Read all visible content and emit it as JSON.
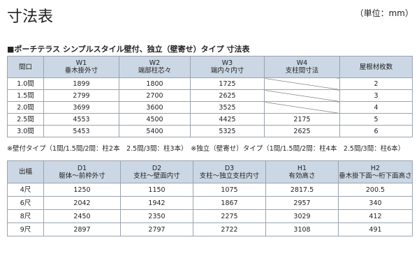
{
  "header": {
    "title": "寸法表",
    "unit": "（単位：mm）"
  },
  "section_title": "■ポーチテラス シンプルスタイル壁付、独立（壁寄せ）タイプ 寸法表",
  "table1": {
    "headers": [
      [
        "間口"
      ],
      [
        "W1",
        "垂木掛外寸"
      ],
      [
        "W2",
        "端部柱芯々"
      ],
      [
        "W3",
        "端内々内寸"
      ],
      [
        "W4",
        "支柱間寸法"
      ],
      [
        "屋根材枚数"
      ]
    ],
    "rows": [
      [
        "1.0間",
        1899,
        1800,
        1725,
        null,
        2
      ],
      [
        "1.5間",
        2799,
        2700,
        2625,
        null,
        3
      ],
      [
        "2.0間",
        3699,
        3600,
        3525,
        null,
        4
      ],
      [
        "2.5間",
        4553,
        4500,
        4425,
        2175,
        5
      ],
      [
        "3.0間",
        5453,
        5400,
        5325,
        2625,
        6
      ]
    ]
  },
  "note": "※壁付タイプ（1間/1.5間/2間：柱2本　2.5間/3間：柱3本）　※独立（壁寄せ）タイプ（1間/1.5間/2間：柱4本　2.5間/3間：柱6本）",
  "table2": {
    "headers": [
      [
        "出幅"
      ],
      [
        "D1",
        "躯体～前枠外寸"
      ],
      [
        "D2",
        "支柱～壁面内寸"
      ],
      [
        "D3",
        "支柱～独立支柱内寸"
      ],
      [
        "H1",
        "有効高さ"
      ],
      [
        "H2",
        "垂木掛下面～桁下面高さ"
      ]
    ],
    "rows": [
      [
        "4尺",
        1250,
        1150,
        1075,
        2817.5,
        200.5
      ],
      [
        "6尺",
        2042,
        1942,
        1867,
        2957,
        340
      ],
      [
        "8尺",
        2450,
        2350,
        2275,
        3029,
        412
      ],
      [
        "9尺",
        2897,
        2797,
        2722,
        3108,
        491
      ]
    ]
  }
}
